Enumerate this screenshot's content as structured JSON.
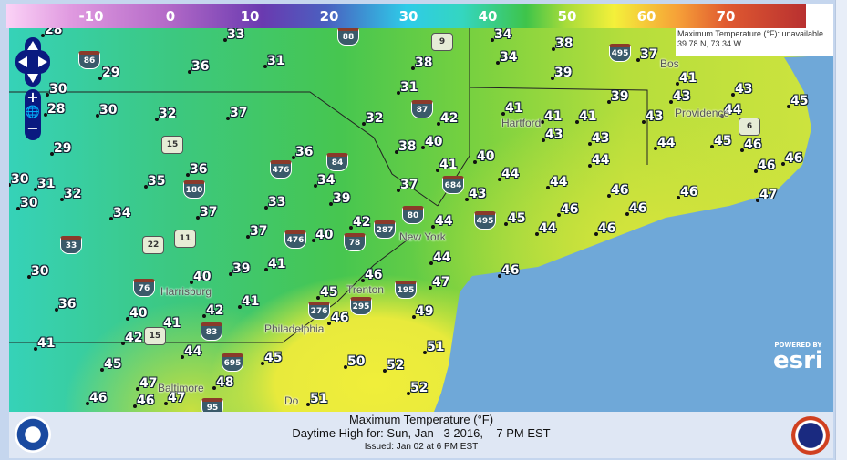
{
  "legend": {
    "unit": "°F",
    "ticks": [
      "-10",
      "0",
      "10",
      "20",
      "30",
      "40",
      "50",
      "60",
      "70"
    ]
  },
  "info_popup": {
    "line1": "Maximum Temperature (°F): unavailable",
    "line2": "39.78 N, 73.34 W"
  },
  "colors": {
    "ocean": "#6fa8d8",
    "land_cold": "#36d2b8",
    "land_mid": "#46c650",
    "land_warm": "#f0ee3a",
    "nav": "#0a1a80"
  },
  "controls": {
    "pan_up": "pan-up",
    "pan_down": "pan-down",
    "pan_left": "pan-left",
    "pan_right": "pan-right",
    "zoom_in": "+",
    "zoom_out": "−"
  },
  "cities": [
    "Bos",
    "Hartford",
    "Providence",
    "New York",
    "Trenton",
    "Philadelphia",
    "Harrisburg",
    "Baltimore",
    "Do"
  ],
  "highways": [
    "86",
    "88",
    "9",
    "87",
    "84",
    "476",
    "180",
    "15",
    "684",
    "80",
    "287",
    "78",
    "495",
    "22",
    "11",
    "33",
    "476",
    "76",
    "276",
    "195",
    "295",
    "83",
    "15",
    "695",
    "95",
    "6",
    "495"
  ],
  "temperatures": [
    "28",
    "33",
    "34",
    "38",
    "37",
    "29",
    "36",
    "31",
    "38",
    "34",
    "39",
    "30",
    "31",
    "41",
    "43",
    "39",
    "43",
    "45",
    "28",
    "30",
    "32",
    "37",
    "32",
    "42",
    "41",
    "41",
    "41",
    "43",
    "44",
    "29",
    "36",
    "38",
    "40",
    "43",
    "43",
    "44",
    "45",
    "46",
    "31",
    "30",
    "32",
    "35",
    "36",
    "41",
    "40",
    "44",
    "44",
    "46",
    "46",
    "30",
    "34",
    "37",
    "43",
    "44",
    "46",
    "46",
    "47",
    "34",
    "37",
    "33",
    "39",
    "44",
    "45",
    "46",
    "46",
    "42",
    "40",
    "37",
    "44",
    "46",
    "44",
    "46",
    "30",
    "40",
    "39",
    "41",
    "46",
    "47",
    "36",
    "41",
    "42",
    "45",
    "46",
    "49",
    "40",
    "41",
    "42",
    "41",
    "44",
    "45",
    "51",
    "45",
    "50",
    "52",
    "47",
    "48",
    "46",
    "46",
    "47",
    "52",
    "51"
  ],
  "esri": {
    "powered": "POWERED BY",
    "brand": "esri"
  },
  "footer": {
    "title": "Maximum Temperature (°F)",
    "subtitle": "Daytime High for: Sun, Jan   3 2016,    7 PM EST",
    "issued": "Issued: Jan 02 at 6 PM EST"
  }
}
